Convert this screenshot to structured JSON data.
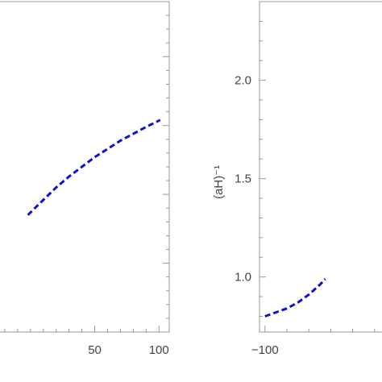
{
  "chart_data": [
    {
      "type": "line",
      "title": "",
      "xlabel": "",
      "ylabel": "",
      "xlim": [
        -30,
        108
      ],
      "ylim": [
        0,
        2.4
      ],
      "x_ticks": [
        50,
        100
      ],
      "x_tick_labels": [
        "50",
        "100"
      ],
      "color": "#1010d0",
      "series": [
        {
          "x": [
            -2,
            10,
            20,
            30,
            40,
            50,
            60,
            70,
            80,
            90,
            101
          ],
          "y": [
            0.85,
            0.96,
            1.05,
            1.13,
            1.2,
            1.27,
            1.33,
            1.39,
            1.44,
            1.49,
            1.54
          ]
        }
      ]
    },
    {
      "type": "line",
      "title": "",
      "xlabel": "",
      "ylabel": "(aH)⁻¹",
      "xlim": [
        -105,
        20
      ],
      "ylim": [
        0.72,
        2.4
      ],
      "x_ticks": [
        -100
      ],
      "x_tick_labels": [
        "−100"
      ],
      "y_ticks": [
        1.0,
        1.5,
        2.0
      ],
      "y_tick_labels": [
        "1.0",
        "1.5",
        "2.0"
      ],
      "color": "#1010d0",
      "series": [
        {
          "x": [
            -100,
            -90,
            -80,
            -70,
            -60,
            -50,
            -45
          ],
          "y": [
            0.8,
            0.82,
            0.84,
            0.87,
            0.91,
            0.96,
            0.99
          ]
        }
      ]
    }
  ]
}
